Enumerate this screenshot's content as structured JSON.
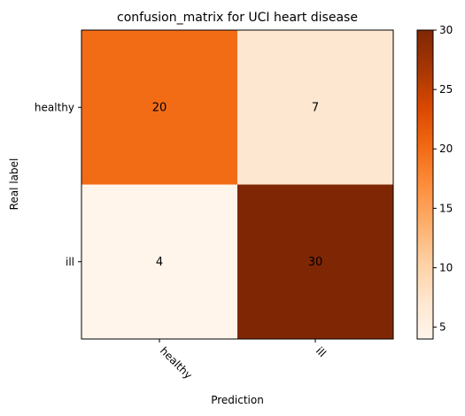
{
  "chart_data": {
    "type": "heatmap",
    "title": "confusion_matrix for UCI heart disease",
    "xlabel": "Prediction",
    "ylabel": "Real label",
    "x_categories": [
      "healthy",
      "ill"
    ],
    "y_categories": [
      "healthy",
      "ill"
    ],
    "values": [
      [
        20,
        7
      ],
      [
        4,
        30
      ]
    ],
    "colormap": "Oranges",
    "colorbar": {
      "range": [
        4,
        30
      ],
      "ticks": [
        5,
        10,
        15,
        20,
        25,
        30
      ]
    },
    "grid": false
  }
}
